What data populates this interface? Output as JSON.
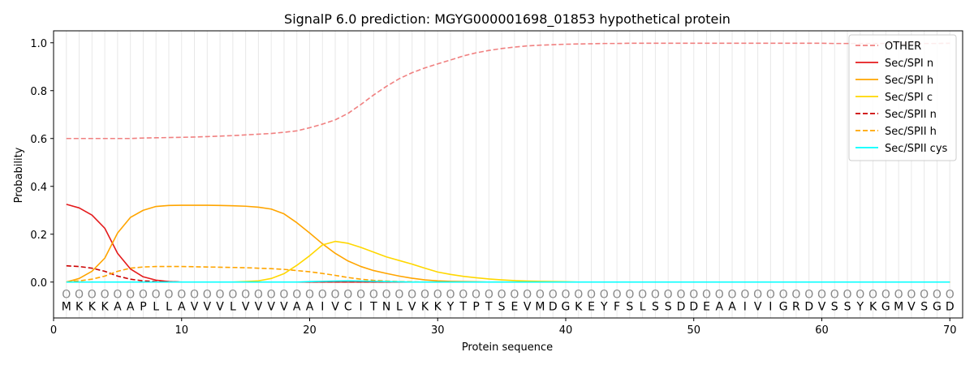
{
  "chart_data": {
    "type": "line",
    "title": "SignalP 6.0 prediction: MGYG000001698_01853 hypothetical protein",
    "xlabel": "Protein sequence",
    "ylabel": "Probability",
    "xlim": [
      0,
      71
    ],
    "ylim": [
      -0.15,
      1.05
    ],
    "xticks": [
      0,
      10,
      20,
      30,
      40,
      50,
      60,
      70
    ],
    "yticks": [
      0.0,
      0.2,
      0.4,
      0.6,
      0.8,
      1.0
    ],
    "ytick_labels": [
      "0.0",
      "0.2",
      "0.4",
      "0.6",
      "0.8",
      "1.0"
    ],
    "grid": "vertical lines at each residue",
    "legend_position": "top-right",
    "sequence": [
      "M",
      "K",
      "K",
      "K",
      "A",
      "A",
      "P",
      "L",
      "L",
      "A",
      "V",
      "V",
      "V",
      "L",
      "V",
      "V",
      "V",
      "V",
      "A",
      "A",
      "I",
      "V",
      "C",
      "I",
      "T",
      "N",
      "L",
      "V",
      "K",
      "K",
      "Y",
      "T",
      "P",
      "T",
      "S",
      "E",
      "V",
      "M",
      "D",
      "G",
      "K",
      "E",
      "Y",
      "F",
      "S",
      "L",
      "S",
      "S",
      "D",
      "D",
      "E",
      "A",
      "A",
      "I",
      "V",
      "I",
      "G",
      "R",
      "D",
      "V",
      "S",
      "S",
      "Y",
      "K",
      "G",
      "M",
      "V",
      "S",
      "G",
      "D"
    ],
    "per_residue_label": "O",
    "series": [
      {
        "name": "OTHER",
        "color": "#f08080",
        "dash": "dashed",
        "values": [
          0.6,
          0.6,
          0.6,
          0.6,
          0.6,
          0.6,
          0.602,
          0.603,
          0.604,
          0.605,
          0.606,
          0.608,
          0.61,
          0.612,
          0.615,
          0.618,
          0.621,
          0.626,
          0.632,
          0.645,
          0.66,
          0.678,
          0.705,
          0.742,
          0.782,
          0.818,
          0.85,
          0.875,
          0.895,
          0.912,
          0.928,
          0.945,
          0.958,
          0.968,
          0.976,
          0.982,
          0.987,
          0.99,
          0.992,
          0.994,
          0.995,
          0.996,
          0.997,
          0.997,
          0.998,
          0.998,
          0.998,
          0.998,
          0.998,
          0.998,
          0.998,
          0.998,
          0.998,
          0.998,
          0.998,
          0.998,
          0.998,
          0.998,
          0.998,
          0.998,
          0.997,
          0.997,
          0.997,
          0.997,
          0.997,
          0.997,
          0.997,
          0.997,
          0.997,
          0.998
        ]
      },
      {
        "name": "Sec/SPI n",
        "color": "#e41a1c",
        "dash": "solid",
        "values": [
          0.325,
          0.31,
          0.28,
          0.225,
          0.12,
          0.055,
          0.022,
          0.008,
          0.002,
          0,
          0,
          0,
          0,
          0,
          0,
          0,
          0,
          0,
          0,
          0,
          0,
          0,
          0,
          0,
          0,
          0,
          0,
          0,
          0,
          0,
          0,
          0,
          0,
          0,
          0,
          0,
          0,
          0,
          0,
          0,
          0,
          0,
          0,
          0,
          0,
          0,
          0,
          0,
          0,
          0,
          0,
          0,
          0,
          0,
          0,
          0,
          0,
          0,
          0,
          0,
          0,
          0,
          0,
          0,
          0,
          0,
          0,
          0,
          0,
          0
        ]
      },
      {
        "name": "Sec/SPI h",
        "color": "#ffa500",
        "dash": "solid",
        "values": [
          0,
          0.015,
          0.045,
          0.1,
          0.205,
          0.27,
          0.3,
          0.316,
          0.32,
          0.321,
          0.321,
          0.321,
          0.32,
          0.319,
          0.317,
          0.313,
          0.305,
          0.285,
          0.248,
          0.205,
          0.16,
          0.12,
          0.088,
          0.065,
          0.048,
          0.036,
          0.025,
          0.016,
          0.009,
          0.005,
          0.003,
          0.002,
          0.001,
          0,
          0,
          0,
          0,
          0,
          0,
          0,
          0,
          0,
          0,
          0,
          0,
          0,
          0,
          0,
          0,
          0,
          0,
          0,
          0,
          0,
          0,
          0,
          0,
          0,
          0,
          0,
          0,
          0,
          0,
          0,
          0,
          0,
          0,
          0,
          0,
          0
        ]
      },
      {
        "name": "Sec/SPI c",
        "color": "#ffd700",
        "dash": "solid",
        "values": [
          0,
          0,
          0,
          0,
          0,
          0,
          0,
          0,
          0,
          0,
          0,
          0,
          0,
          0,
          0.002,
          0.005,
          0.015,
          0.035,
          0.07,
          0.11,
          0.155,
          0.17,
          0.162,
          0.145,
          0.125,
          0.105,
          0.09,
          0.075,
          0.058,
          0.042,
          0.032,
          0.024,
          0.018,
          0.013,
          0.009,
          0.006,
          0.004,
          0.003,
          0.002,
          0.001,
          0,
          0,
          0,
          0,
          0,
          0,
          0,
          0,
          0,
          0,
          0,
          0,
          0,
          0,
          0,
          0,
          0,
          0,
          0,
          0,
          0,
          0,
          0,
          0,
          0,
          0,
          0,
          0,
          0,
          0
        ]
      },
      {
        "name": "Sec/SPII n",
        "color": "#cc0000",
        "dash": "dashed",
        "values": [
          0.068,
          0.065,
          0.058,
          0.045,
          0.025,
          0.012,
          0.005,
          0.002,
          0.001,
          0,
          0,
          0,
          0,
          0,
          0,
          0,
          0,
          0,
          0,
          0,
          0,
          0,
          0,
          0,
          0,
          0,
          0,
          0,
          0,
          0,
          0,
          0,
          0,
          0,
          0,
          0,
          0,
          0,
          0,
          0,
          0,
          0,
          0,
          0,
          0,
          0,
          0,
          0,
          0,
          0,
          0,
          0,
          0,
          0,
          0,
          0,
          0,
          0,
          0,
          0,
          0,
          0,
          0,
          0,
          0,
          0,
          0,
          0,
          0,
          0
        ]
      },
      {
        "name": "Sec/SPII h",
        "color": "#ffa500",
        "dash": "dashed",
        "values": [
          0,
          0.005,
          0.012,
          0.025,
          0.045,
          0.058,
          0.063,
          0.065,
          0.065,
          0.065,
          0.064,
          0.063,
          0.062,
          0.061,
          0.06,
          0.058,
          0.056,
          0.053,
          0.048,
          0.043,
          0.036,
          0.028,
          0.019,
          0.012,
          0.007,
          0.004,
          0.002,
          0.001,
          0,
          0,
          0,
          0,
          0,
          0,
          0,
          0,
          0,
          0,
          0,
          0,
          0,
          0,
          0,
          0,
          0,
          0,
          0,
          0,
          0,
          0,
          0,
          0,
          0,
          0,
          0,
          0,
          0,
          0,
          0,
          0,
          0,
          0,
          0,
          0,
          0,
          0,
          0,
          0,
          0,
          0
        ]
      },
      {
        "name": "Sec/SPII cys",
        "color": "#00ffff",
        "dash": "solid",
        "values": [
          0,
          0,
          0,
          0,
          0,
          0,
          0,
          0,
          0,
          0,
          0,
          0,
          0,
          0,
          0,
          0,
          0,
          0,
          0,
          0.002,
          0.003,
          0.004,
          0.005,
          0.004,
          0.003,
          0.002,
          0.001,
          0,
          0,
          0,
          0,
          0,
          0,
          0,
          0,
          0,
          0,
          0,
          0,
          0,
          0,
          0,
          0,
          0,
          0,
          0,
          0,
          0,
          0,
          0,
          0,
          0,
          0,
          0,
          0,
          0,
          0,
          0,
          0,
          0,
          0,
          0,
          0,
          0,
          0,
          0,
          0,
          0,
          0,
          0
        ]
      }
    ]
  }
}
